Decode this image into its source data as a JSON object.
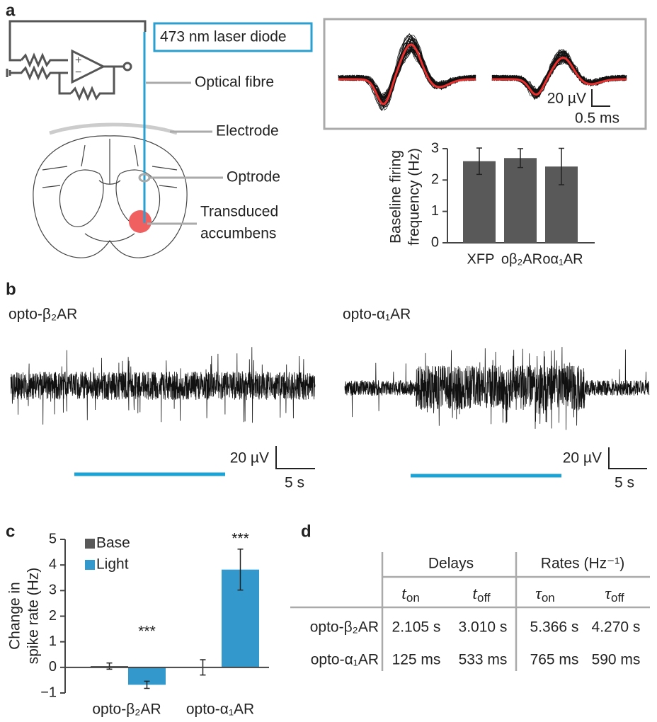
{
  "panel_labels": [
    "a",
    "b",
    "c",
    "d"
  ],
  "diagram": {
    "laser": "473 nm laser diode",
    "labels": [
      "Optical fibre",
      "Electrode",
      "Optrode",
      "Transduced",
      "accumbens"
    ]
  },
  "waveform_scale": {
    "y": "20 µV",
    "x": "0.5 ms"
  },
  "recordings": [
    {
      "title": "opto-β₂AR",
      "scale_y": "20 µV",
      "scale_x": "5 s"
    },
    {
      "title": "opto-α₁AR",
      "scale_y": "20 µV",
      "scale_x": "5 s"
    }
  ],
  "chart_data": [
    {
      "type": "bar",
      "ylabel": [
        "Baseline firing",
        "frequency (Hz)"
      ],
      "categories": [
        "XFP",
        "oβ₂AR",
        "oα₁AR"
      ],
      "values": [
        2.6,
        2.7,
        2.43
      ],
      "errors": [
        0.42,
        0.3,
        0.58
      ],
      "color": "#595959",
      "ylim": [
        0,
        3
      ],
      "yticks": [
        0,
        1,
        2,
        3
      ]
    },
    {
      "type": "grouped_bar",
      "ylabel": [
        "Change in",
        "spike rate (Hz)"
      ],
      "categories": [
        "opto-β₂AR",
        "opto-α₁AR"
      ],
      "series": [
        {
          "name": "Base",
          "color": "#595959",
          "values": [
            0.05,
            0
          ],
          "errors": [
            0.12,
            0.3
          ]
        },
        {
          "name": "Light",
          "color": "#3399cc",
          "values": [
            -0.68,
            3.82
          ],
          "errors": [
            0.14,
            0.8
          ]
        }
      ],
      "annotations": [
        "***",
        "***"
      ],
      "ylim": [
        -1,
        5
      ],
      "yticks": [
        {
          "value": -1,
          "label": "−1"
        },
        0,
        1,
        2,
        3,
        4,
        5
      ]
    }
  ],
  "table": {
    "groups": [
      "Delays",
      "Rates (Hz⁻¹)"
    ],
    "columns": [
      {
        "base": "t",
        "sub": "on"
      },
      {
        "base": "t",
        "sub": "off"
      },
      {
        "base": "τ",
        "sub": "on"
      },
      {
        "base": "τ",
        "sub": "off"
      }
    ],
    "rows": [
      [
        "opto-β₂AR",
        "2.105 s",
        "3.010 s",
        "5.366 s",
        "4.270 s"
      ],
      [
        "opto-α₁AR",
        "125 ms",
        "533 ms",
        "765 ms",
        "590 ms"
      ]
    ]
  }
}
